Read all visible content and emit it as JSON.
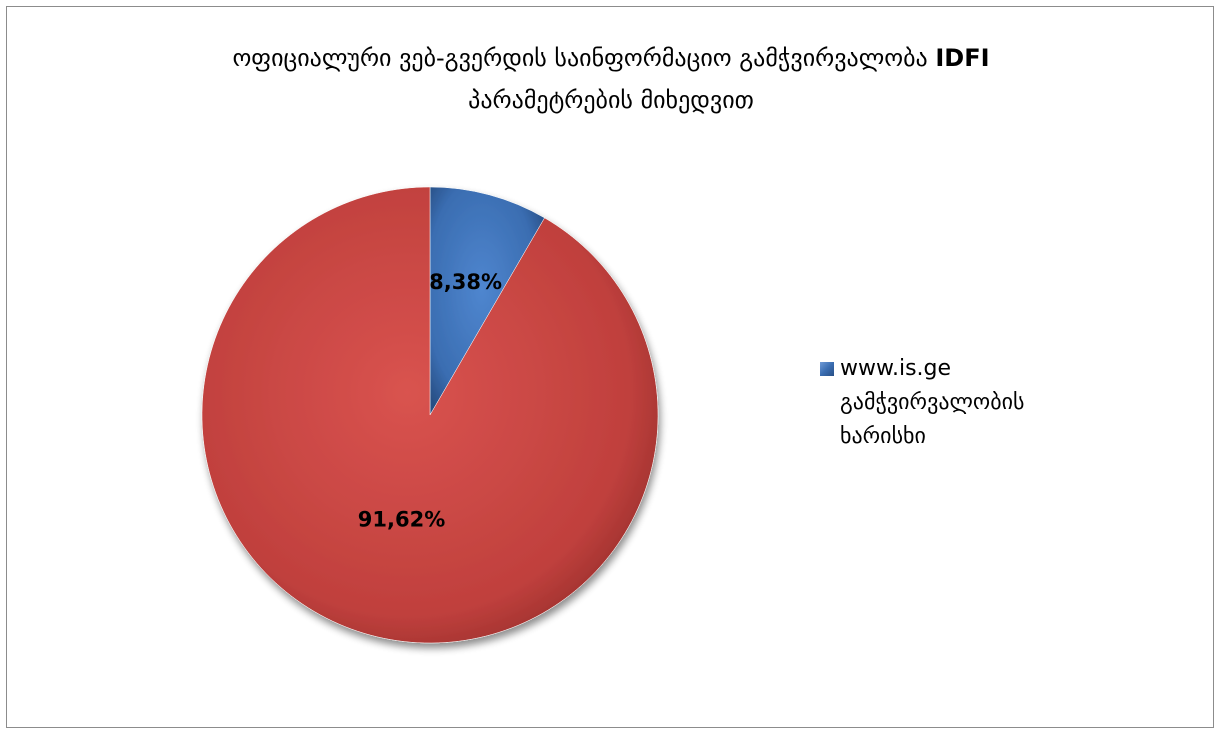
{
  "title": {
    "line1": "ოფიციალური ვებ-გვერდის საინფორმაციო გამჭვირვალობა",
    "line1_bold": "IDFI",
    "line2": "პარამეტრების მიხედვით"
  },
  "legend": {
    "entry_label": "www.is.ge",
    "entry_desc": "გამჭვირვალობის ხარისხი",
    "placement": "right",
    "color": "#3a6db1"
  },
  "chart_data": {
    "type": "pie",
    "title": "ოფიციალური ვებ-გვერდის საინფორმაციო გამჭვირვალობა IDFI პარამეტრების მიხედვით",
    "slices": [
      {
        "value": 8.38,
        "label": "8,38%",
        "color": "#3a6db1"
      },
      {
        "value": 91.62,
        "label": "91,62%",
        "color": "#c0403d"
      }
    ]
  }
}
